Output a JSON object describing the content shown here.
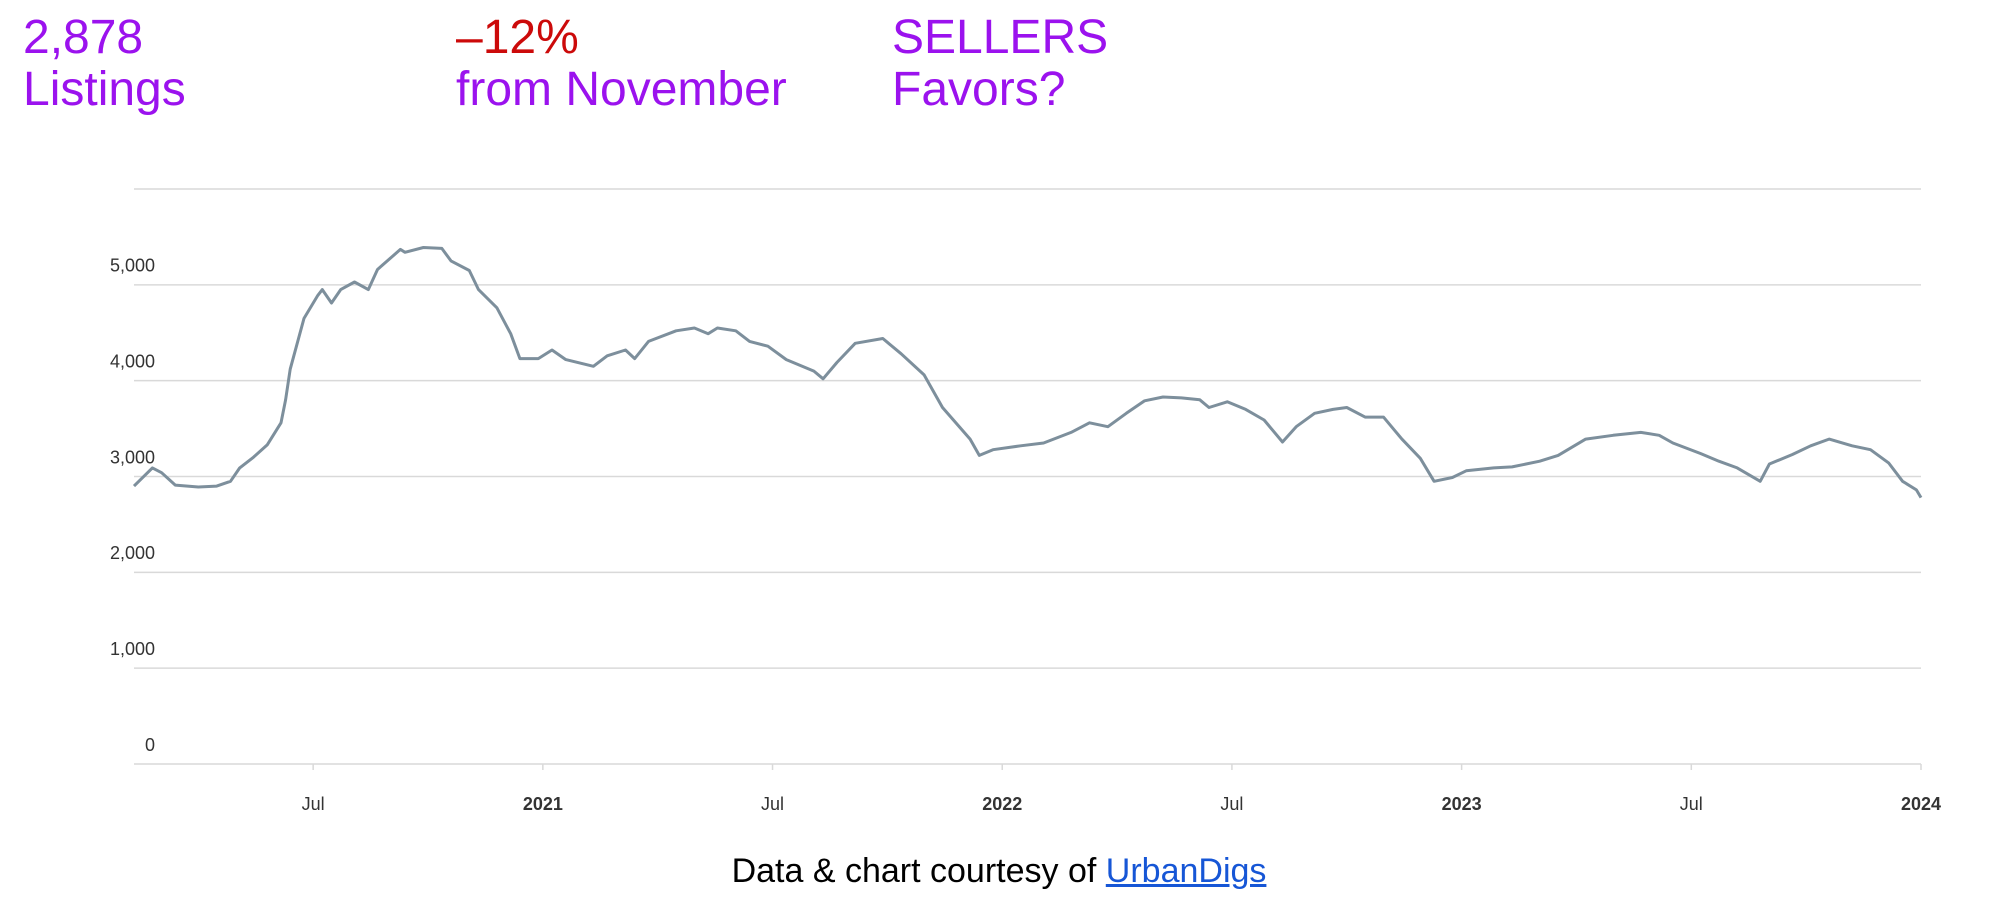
{
  "stats": [
    {
      "value": "2,878",
      "label": "Listings"
    },
    {
      "value": "–12%",
      "label": "from November"
    },
    {
      "value": "SELLERS",
      "label": "Favors?"
    }
  ],
  "footer": {
    "text": "Data & chart courtesy of",
    "link": "UrbanDigs"
  },
  "chart_data": {
    "type": "line",
    "color": "#7d8f9c",
    "grid": true,
    "xlim": [
      2020.11,
      2024
    ],
    "xticks": [
      {
        "value": 2020.5,
        "label": "Jul"
      },
      2021,
      {
        "value": 2021.5,
        "label": "Jul"
      },
      2022,
      {
        "value": 2022.5,
        "label": "Jul"
      },
      2023,
      {
        "value": 2023.5,
        "label": "Jul"
      },
      2024
    ],
    "ylim": [
      0,
      6000
    ],
    "yticks": [
      0,
      {
        "value": 1000,
        "label": "1,000"
      },
      {
        "value": 2000,
        "label": "2,000"
      },
      {
        "value": 3000,
        "label": "3,000"
      },
      {
        "value": 4000,
        "label": "4,000"
      },
      {
        "value": 5000,
        "label": "5,000"
      }
    ],
    "x": [
      2020.11,
      2020.15,
      2020.17,
      2020.2,
      2020.25,
      2020.29,
      2020.32,
      2020.34,
      2020.37,
      2020.4,
      2020.43,
      2020.44,
      2020.45,
      2020.48,
      2020.51,
      2020.52,
      2020.54,
      2020.56,
      2020.59,
      2020.62,
      2020.64,
      2020.69,
      2020.7,
      2020.74,
      2020.78,
      2020.8,
      2020.84,
      2020.86,
      2020.9,
      2020.93,
      2020.95,
      2020.99,
      2021.02,
      2021.05,
      2021.11,
      2021.14,
      2021.18,
      2021.2,
      2021.23,
      2021.29,
      2021.33,
      2021.36,
      2021.38,
      2021.42,
      2021.45,
      2021.49,
      2021.53,
      2021.59,
      2021.61,
      2021.64,
      2021.68,
      2021.74,
      2021.78,
      2021.83,
      2021.87,
      2021.93,
      2021.95,
      2021.98,
      2022.04,
      2022.09,
      2022.15,
      2022.19,
      2022.23,
      2022.27,
      2022.31,
      2022.35,
      2022.39,
      2022.43,
      2022.45,
      2022.49,
      2022.53,
      2022.57,
      2022.61,
      2022.64,
      2022.68,
      2022.72,
      2022.75,
      2022.79,
      2022.83,
      2022.87,
      2022.91,
      2022.94,
      2022.98,
      2023.01,
      2023.07,
      2023.11,
      2023.17,
      2023.21,
      2023.27,
      2023.33,
      2023.39,
      2023.43,
      2023.46,
      2023.52,
      2023.56,
      2023.6,
      2023.65,
      2023.67,
      2023.72,
      2023.76,
      2023.8,
      2023.85,
      2023.89,
      2023.93,
      2023.96,
      2023.99,
      2024.0
    ],
    "values": [
      2900,
      3090,
      3040,
      2910,
      2890,
      2900,
      2950,
      3090,
      3200,
      3330,
      3560,
      3800,
      4120,
      4650,
      4890,
      4950,
      4810,
      4950,
      5030,
      4950,
      5160,
      5370,
      5340,
      5390,
      5380,
      5250,
      5150,
      4950,
      4760,
      4490,
      4230,
      4230,
      4320,
      4220,
      4150,
      4260,
      4320,
      4230,
      4410,
      4520,
      4550,
      4490,
      4550,
      4520,
      4410,
      4360,
      4220,
      4100,
      4020,
      4190,
      4390,
      4440,
      4280,
      4060,
      3720,
      3390,
      3220,
      3280,
      3320,
      3350,
      3460,
      3560,
      3520,
      3660,
      3790,
      3830,
      3820,
      3800,
      3720,
      3780,
      3700,
      3590,
      3360,
      3520,
      3660,
      3700,
      3720,
      3620,
      3620,
      3390,
      3190,
      2950,
      2990,
      3060,
      3090,
      3100,
      3160,
      3220,
      3390,
      3430,
      3460,
      3430,
      3350,
      3240,
      3160,
      3090,
      2950,
      3130,
      3230,
      3320,
      3390,
      3320,
      3280,
      3140,
      2950,
      2860,
      2780
    ]
  }
}
